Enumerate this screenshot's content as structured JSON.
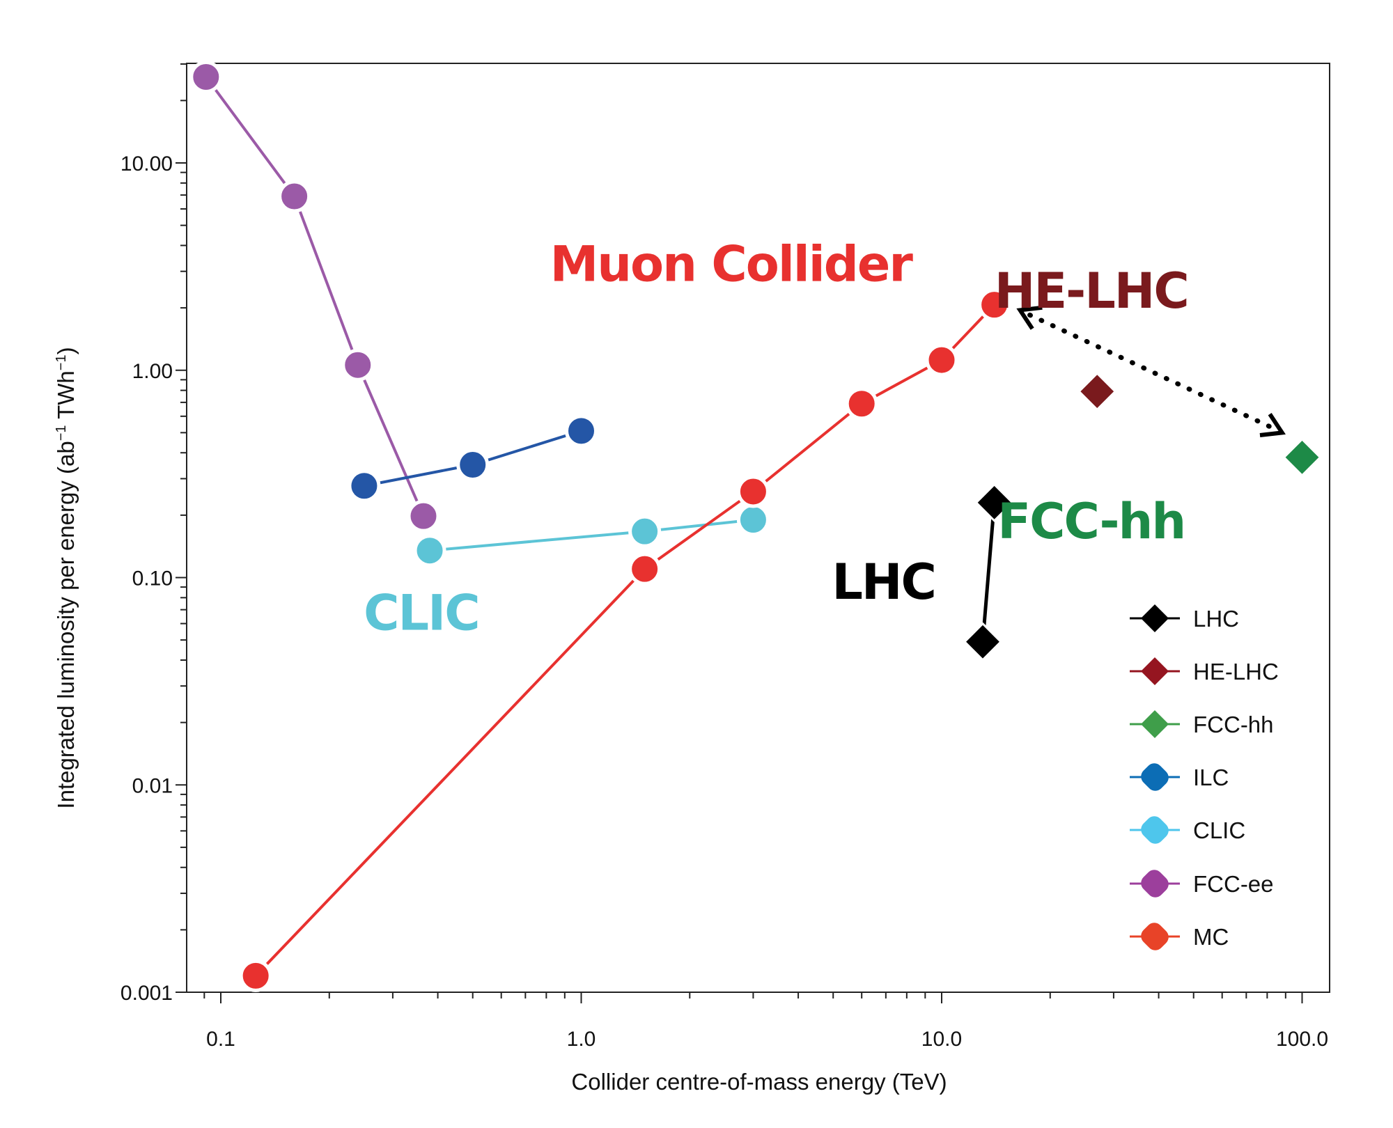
{
  "chart_data": {
    "type": "scatter",
    "title": "",
    "xlabel": "Collider centre-of-mass energy (TeV)",
    "ylabel": "Integrated luminosity per energy (ab",
    "ylabel_sup1": "−1",
    "ylabel_mid": " TWh",
    "ylabel_sup2": "−1",
    "ylabel_end": ")",
    "xscale": "log",
    "yscale": "log",
    "xlim": [
      0.08,
      120
    ],
    "ylim": [
      0.001,
      30
    ],
    "xticks": [
      {
        "value": 0.1,
        "label": "0.1"
      },
      {
        "value": 1,
        "label": "1.0"
      },
      {
        "value": 10,
        "label": "10.0"
      },
      {
        "value": 100,
        "label": "100.0"
      }
    ],
    "yticks": [
      {
        "value": 10,
        "label": "10.00"
      },
      {
        "value": 1,
        "label": "1.00"
      },
      {
        "value": 0.1,
        "label": "0.10"
      },
      {
        "value": 0.01,
        "label": "0.01"
      },
      {
        "value": 0.001,
        "label": "0.001"
      }
    ],
    "grid": false,
    "legend_position": "bottom-right",
    "series": [
      {
        "name": "LHC",
        "color": "#000000",
        "legend_color": "#000000",
        "marker": "diamond",
        "x": [
          14,
          13
        ],
        "y": [
          0.23,
          0.049
        ]
      },
      {
        "name": "HE-LHC",
        "color": "#7a1a1d",
        "legend_color": "#951520",
        "marker": "diamond",
        "x": [
          27
        ],
        "y": [
          0.79
        ]
      },
      {
        "name": "FCC-hh",
        "color": "#1d8a47",
        "legend_color": "#3f9e4a",
        "marker": "diamond",
        "x": [
          100
        ],
        "y": [
          0.38
        ]
      },
      {
        "name": "ILC",
        "color": "#2456a6",
        "legend_color": "#0c6db5",
        "marker": "circle",
        "x": [
          0.25,
          0.5,
          1.0
        ],
        "y": [
          0.277,
          0.35,
          0.51
        ]
      },
      {
        "name": "CLIC",
        "color": "#5cc4d6",
        "legend_color": "#4ec6ec",
        "marker": "circle",
        "x": [
          0.38,
          1.5,
          3.0
        ],
        "y": [
          0.135,
          0.167,
          0.19
        ]
      },
      {
        "name": "FCC-ee",
        "color": "#9b5aa7",
        "legend_color": "#9c3f9c",
        "marker": "circle",
        "x": [
          0.091,
          0.16,
          0.24,
          0.365
        ],
        "y": [
          26,
          6.9,
          1.06,
          0.198
        ]
      },
      {
        "name": "MC",
        "color": "#e8312f",
        "legend_color": "#e84328",
        "marker": "circle",
        "x": [
          0.125,
          1.5,
          3.0,
          6.0,
          10.0,
          14.0
        ],
        "y": [
          0.0012,
          0.11,
          0.26,
          0.69,
          1.12,
          2.07
        ]
      }
    ],
    "annotations": [
      {
        "text": "Muon Collider",
        "color": "#e8312f",
        "x": 2.6,
        "y": 2.7
      },
      {
        "text": "HE-LHC",
        "color": "#7a1a1d",
        "x": 26,
        "y": 2.0
      },
      {
        "text": "FCC-hh",
        "color": "#1d8a47",
        "x": 26,
        "y": 0.155
      },
      {
        "text": "LHC",
        "color": "#000000",
        "x": 6.9,
        "y": 0.079
      },
      {
        "text": "CLIC",
        "color": "#5cc4d6",
        "x": 0.36,
        "y": 0.056
      }
    ],
    "double_arrow": {
      "from": [
        16.5,
        1.95
      ],
      "to": [
        88,
        0.5
      ],
      "style": "dotted"
    }
  }
}
